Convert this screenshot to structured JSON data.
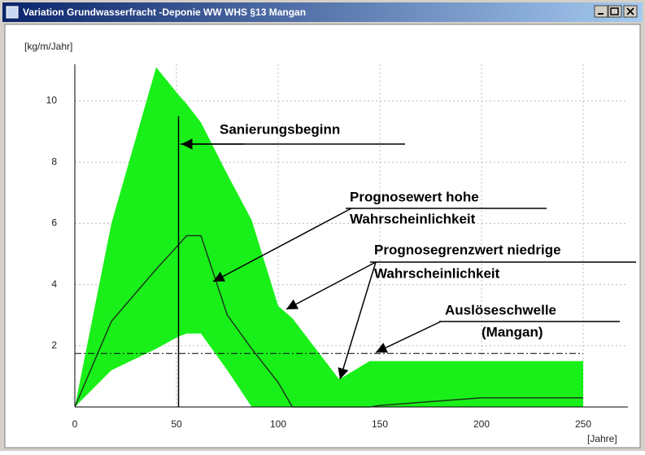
{
  "window": {
    "title": "Variation Grundwasserfracht -Deponie WW WHS §13 Mangan"
  },
  "chart_data": {
    "type": "band",
    "ylabel": "[kg/m/Jahr]",
    "xlabel": "[Jahre]",
    "x": [
      0,
      18,
      40,
      51,
      55,
      62,
      75,
      87,
      100,
      107,
      130,
      145,
      150,
      200,
      250
    ],
    "upper": [
      0,
      6.0,
      11.1,
      10.2,
      9.9,
      9.3,
      7.6,
      6.1,
      3.3,
      2.9,
      0.9,
      1.5,
      1.5,
      1.5,
      1.5
    ],
    "lower": [
      0,
      1.2,
      1.9,
      2.3,
      2.4,
      2.4,
      1.2,
      0,
      0,
      0,
      0,
      0,
      0,
      0,
      0
    ],
    "line": [
      0,
      2.8,
      4.5,
      5.3,
      5.6,
      5.6,
      3.0,
      1.9,
      0.8,
      0,
      0,
      0,
      0.05,
      0.3,
      0.3
    ],
    "band_color": "#19f019",
    "line_color": "#1a3a1a",
    "threshold": 1.75,
    "start_year": 51,
    "start_line_top": 9.5,
    "xlim": [
      0,
      272
    ],
    "ylim": [
      0,
      11.2
    ],
    "xticks": [
      0,
      50,
      100,
      150,
      200,
      250
    ],
    "yticks": [
      2,
      4,
      6,
      8,
      10
    ],
    "grid": true,
    "annotations": [
      "Sanierungsbeginn",
      "Prognosewert hohe",
      "Wahrscheinlichkeit",
      "Prognosegrenzwert niedrige",
      "Wahrscheinlichkeit",
      "Auslöseschwelle",
      "(Mangan)"
    ]
  }
}
